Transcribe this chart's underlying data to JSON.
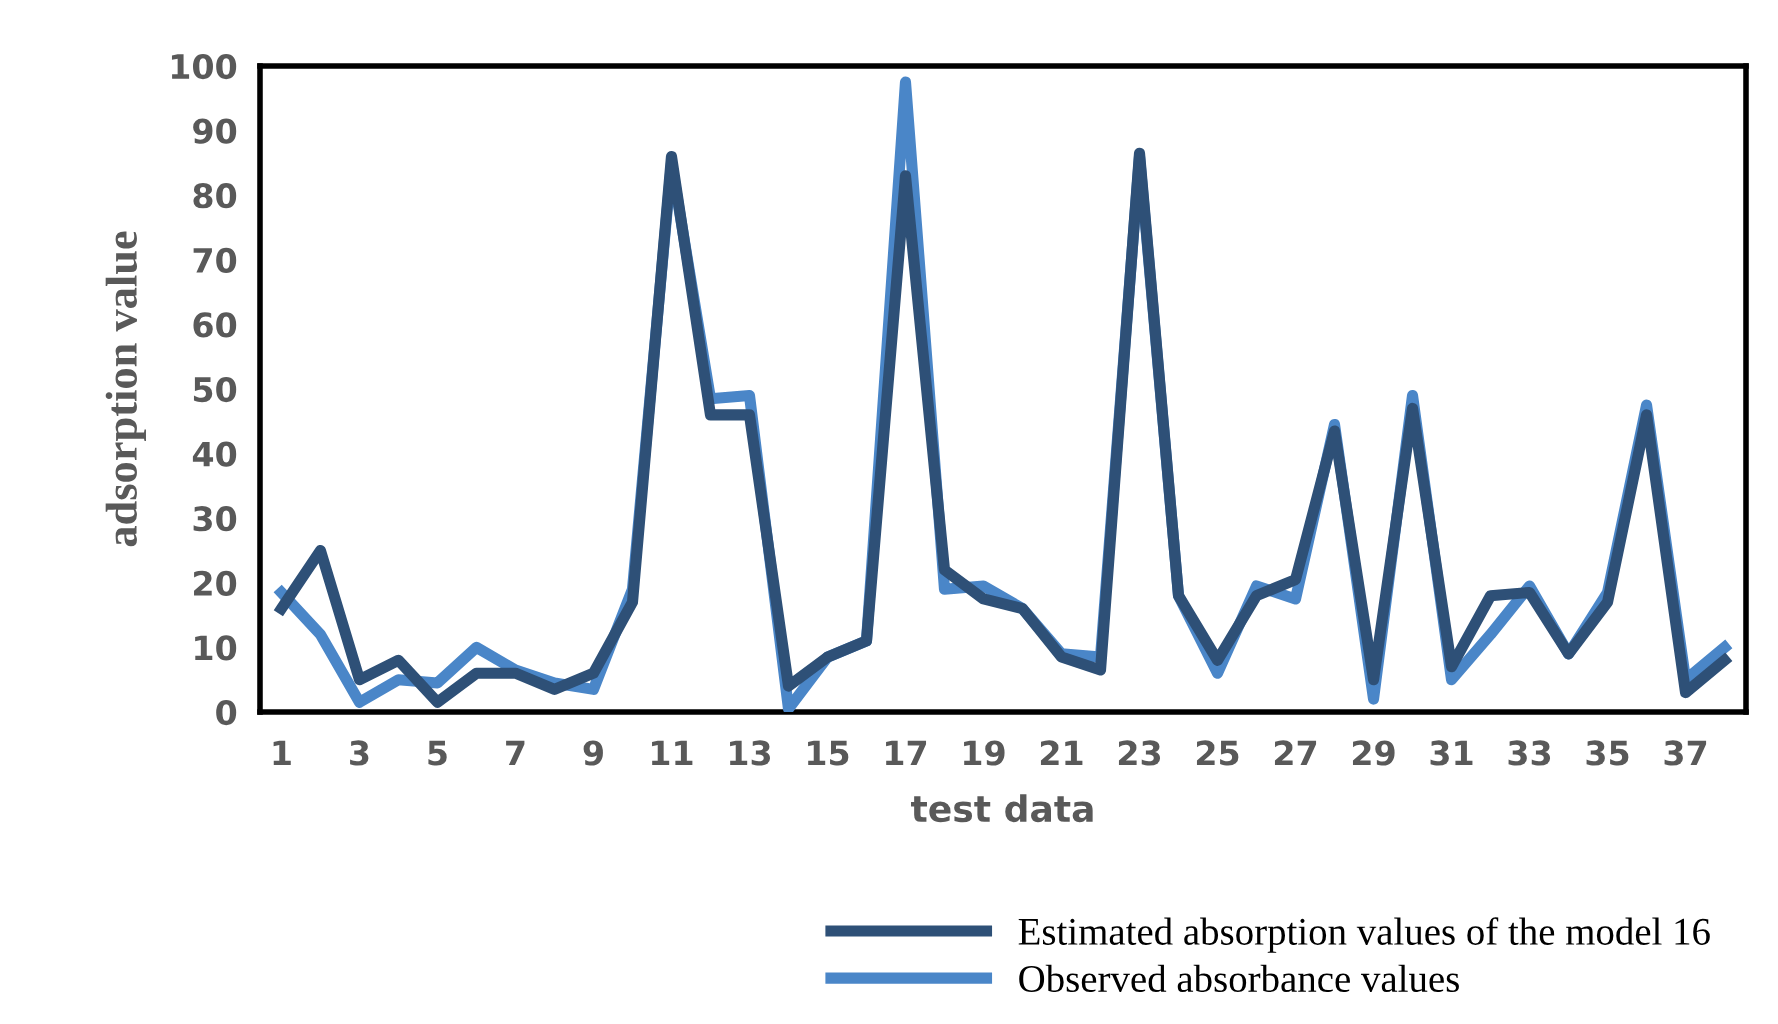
{
  "chart_data": {
    "type": "line",
    "xlabel": "test data",
    "ylabel": "adsorption value",
    "categories": [
      "1",
      null,
      "3",
      null,
      "5",
      null,
      "7",
      null,
      "9",
      null,
      "11",
      null,
      "13",
      null,
      "15",
      null,
      "17",
      null,
      "19",
      null,
      "21",
      null,
      "23",
      null,
      "25",
      null,
      "27",
      null,
      "29",
      null,
      "31",
      null,
      "33",
      null,
      "35",
      null,
      "37",
      null
    ],
    "series": [
      {
        "name": "Estimated absorption values of the model 16",
        "color": "#2e5077",
        "values": [
          16,
          25,
          5,
          8,
          1.5,
          6,
          6,
          3.5,
          6,
          17,
          86,
          46,
          46,
          4,
          8.5,
          11,
          83,
          22,
          17.5,
          16,
          8.5,
          6.5,
          86.5,
          18,
          8,
          18,
          20.5,
          43.5,
          5,
          47,
          7,
          18,
          18.5,
          9,
          17,
          46,
          3,
          8
        ]
      },
      {
        "name": "Observed absorbance values",
        "color": "#4a86c8",
        "values": [
          18.5,
          12,
          1.5,
          5,
          4.5,
          10,
          6.5,
          4.5,
          3.5,
          19,
          85,
          48.5,
          49,
          0.5,
          8.5,
          11,
          97.5,
          19,
          19.5,
          16,
          9,
          8.5,
          86,
          18,
          6,
          19.5,
          17.5,
          44.5,
          2,
          49,
          5,
          12,
          19.5,
          9,
          18.5,
          47.5,
          5,
          10
        ]
      }
    ],
    "ylim": [
      0,
      100
    ],
    "yticks": [
      0,
      10,
      20,
      30,
      40,
      50,
      60,
      70,
      80,
      90,
      100
    ],
    "grid": false,
    "legend": "bottom right",
    "marker": "none",
    "line_style": "solid"
  }
}
